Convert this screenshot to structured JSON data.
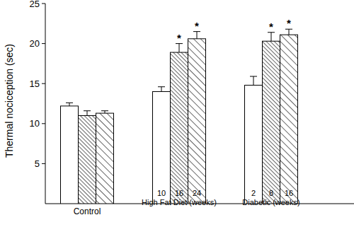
{
  "chart_data": {
    "type": "bar",
    "y_label": "Thermal nociception (sec)",
    "categories": [
      "Control",
      "High Fat Diet (weeks)",
      "Diabetic (weeks)"
    ],
    "series": [
      {
        "color": "#000000",
        "values": [
          12.2,
          14.0,
          14.8
        ],
        "errors": [
          0.4,
          0.6,
          1.1
        ],
        "labels": [
          null,
          "10",
          "2"
        ],
        "significance": [
          null,
          null,
          null
        ]
      },
      {
        "color": "#000000",
        "values": [
          11.0,
          18.9,
          20.3
        ],
        "errors": [
          0.6,
          1.1,
          1.1
        ],
        "labels": [
          null,
          "16",
          "8"
        ],
        "significance": [
          null,
          "*",
          "*"
        ]
      },
      {
        "color": "#000000",
        "values": [
          11.3,
          20.6,
          21.1
        ],
        "errors": [
          0.3,
          0.9,
          0.7
        ],
        "labels": [
          null,
          "24",
          "16"
        ],
        "significance": [
          null,
          "*",
          "*"
        ]
      }
    ],
    "ylim": [
      0,
      25
    ],
    "yticks": [
      5,
      10,
      15,
      20,
      25
    ],
    "grid": false
  }
}
